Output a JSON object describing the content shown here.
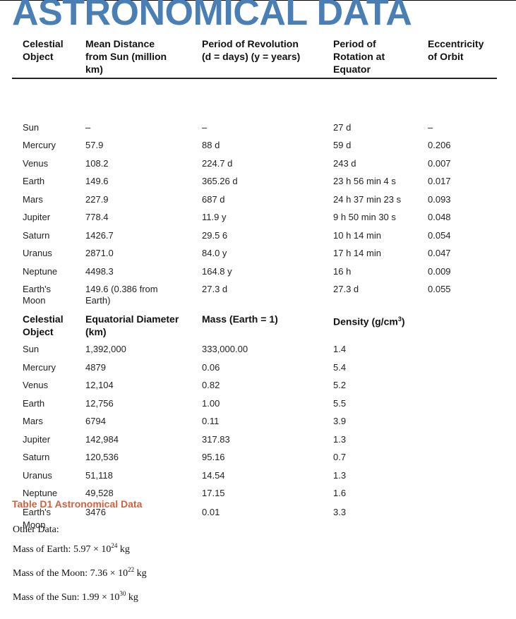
{
  "title": "ASTRONOMICAL DATA",
  "table1": {
    "headers": [
      "Celestial\nObject",
      "Mean Distance\nfrom Sun (million\nkm)",
      "Period of Revolution\n(d = days) (y = years)",
      "Period of\nRotation at\nEquator",
      "Eccentricity\nof Orbit"
    ],
    "rows": [
      [
        "Sun",
        "–",
        "–",
        "27 d",
        "–"
      ],
      [
        "Mercury",
        "57.9",
        "88 d",
        "59 d",
        "0.206"
      ],
      [
        "Venus",
        "108.2",
        "224.7 d",
        "243 d",
        "0.007"
      ],
      [
        "Earth",
        "149.6",
        "365.26 d",
        "23 h 56 min 4 s",
        "0.017"
      ],
      [
        "Mars",
        "227.9",
        "687 d",
        "24 h 37 min 23 s",
        "0.093"
      ],
      [
        "Jupiter",
        "778.4",
        "11.9 y",
        "9 h 50 min 30 s",
        "0.048"
      ],
      [
        "Saturn",
        "1426.7",
        "29.5 6",
        "10 h 14 min",
        "0.054"
      ],
      [
        "Uranus",
        "2871.0",
        "84.0 y",
        "17 h 14 min",
        "0.047"
      ],
      [
        "Neptune",
        "4498.3",
        "164.8 y",
        "16 h",
        "0.009"
      ],
      [
        "Earth's\nMoon",
        "149.6 (0.386 from\nEarth)",
        "27.3 d",
        "27.3 d",
        "0.055"
      ]
    ]
  },
  "table2": {
    "headers": [
      "Celestial\nObject",
      "Equatorial Diameter\n(km)",
      "Mass (Earth = 1)",
      "Density (g/cm",
      "3",
      ")"
    ],
    "rows": [
      [
        "Sun",
        "1,392,000",
        "333,000.00",
        "1.4"
      ],
      [
        "Mercury",
        "4879",
        "0.06",
        "5.4"
      ],
      [
        "Venus",
        "12,104",
        "0.82",
        "5.2"
      ],
      [
        "Earth",
        "12,756",
        "1.00",
        "5.5"
      ],
      [
        "Mars",
        "6794",
        "0.11",
        "3.9"
      ],
      [
        "Jupiter",
        "142,984",
        "317.83",
        "1.3"
      ],
      [
        "Saturn",
        "120,536",
        "95.16",
        "0.7"
      ],
      [
        "Uranus",
        "51,118",
        "14.54",
        "1.3"
      ],
      [
        "Neptune",
        "49,528",
        "17.15",
        "1.6"
      ],
      [
        "Earth's\nMoon",
        "3476",
        "0.01",
        "3.3"
      ]
    ]
  },
  "caption": "Table D1 Astronomical Data",
  "other": {
    "heading": "Other Data:",
    "items": [
      {
        "label": "Mass of Earth:",
        "mantissa": "5.97 × 10",
        "exp": "24",
        "unit": "kg"
      },
      {
        "label": "Mass of the Moon:",
        "mantissa": "7.36 × 10",
        "exp": "22",
        "unit": "kg"
      },
      {
        "label": "Mass of the Sun:",
        "mantissa": "1.99 × 10",
        "exp": "30",
        "unit": "kg"
      }
    ]
  },
  "colors": {
    "title": "#4a7fb6",
    "caption": "#d35f3b"
  }
}
